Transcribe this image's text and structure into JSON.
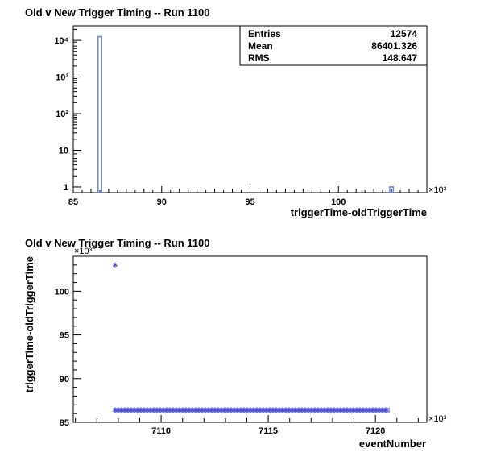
{
  "chart_data": [
    {
      "type": "bar",
      "title": "Old v New Trigger Timing -- Run 1100",
      "xlabel": "triggerTime-oldTriggerTime",
      "ylabel": "",
      "x_multiplier": "×10³",
      "xlim": [
        85,
        105
      ],
      "ylim": [
        0.7,
        25000
      ],
      "yscale": "log",
      "x_ticks": [
        "85",
        "90",
        "95",
        "100"
      ],
      "x_tick_values": [
        85,
        90,
        95,
        100
      ],
      "y_ticks": [
        "1",
        "10",
        "10²",
        "10³",
        "10⁴"
      ],
      "y_tick_values": [
        1,
        10,
        100,
        1000,
        10000
      ],
      "bins": [
        {
          "x0": 86.4,
          "x1": 86.6,
          "count": 12573
        },
        {
          "x0": 102.9,
          "x1": 103.1,
          "count": 1
        }
      ],
      "stats": {
        "entries_label": "Entries",
        "entries": "12574",
        "mean_label": "Mean",
        "mean": "86401.326",
        "rms_label": "RMS",
        "rms": "148.647"
      },
      "color": "#6f86d9",
      "legend_position": "top-right"
    },
    {
      "type": "scatter",
      "title": "Old v New Trigger Timing -- Run 1100",
      "xlabel": "eventNumber",
      "ylabel": "triggerTime-oldTriggerTime",
      "x_multiplier": "×10³",
      "y_multiplier": "×10³",
      "xlim": [
        7105.9,
        7122.4
      ],
      "ylim": [
        85,
        104
      ],
      "x_ticks": [
        "7110",
        "7115",
        "7120"
      ],
      "x_tick_values": [
        7110,
        7115,
        7120
      ],
      "y_ticks": [
        "85",
        "90",
        "95",
        "100"
      ],
      "y_tick_values": [
        85,
        90,
        95,
        100
      ],
      "outliers": [
        {
          "x": 7107.85,
          "y": 103.0
        }
      ],
      "band": {
        "x_start": 7107.85,
        "x_end": 7120.6,
        "y": 86.4
      },
      "color": "#4a4ad0"
    }
  ]
}
